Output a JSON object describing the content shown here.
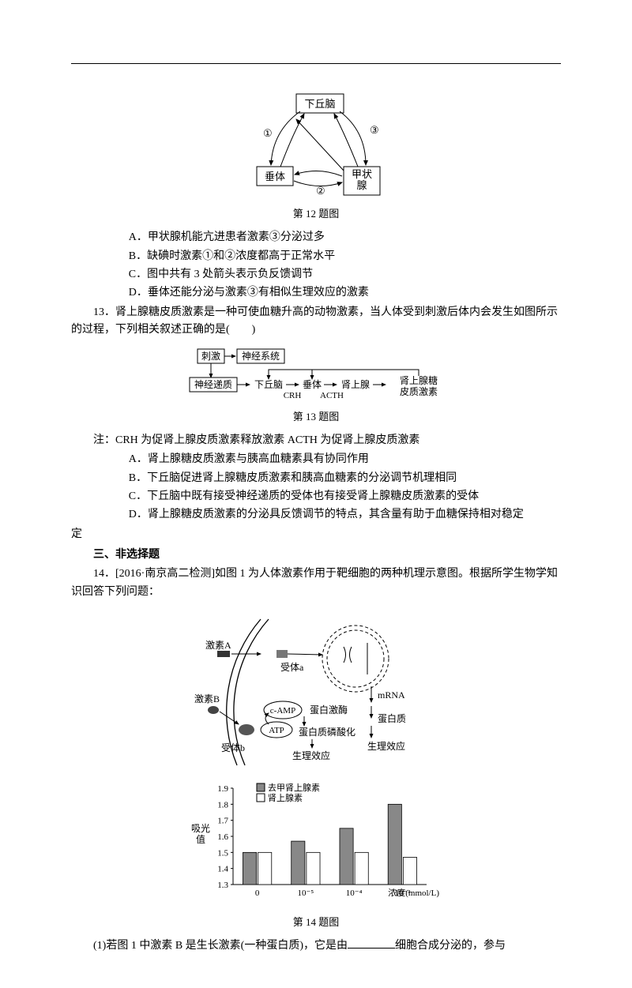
{
  "fig12": {
    "caption": "第 12 题图",
    "top_box": "下丘脑",
    "left_box": "垂体",
    "right_box": "甲状腺",
    "label1": "①",
    "label2": "②",
    "label3": "③",
    "box_stroke": "#000000",
    "box_fill": "#ffffff",
    "arrow_stroke": "#000000"
  },
  "q12": {
    "a": "A．甲状腺机能亢进患者激素③分泌过多",
    "b": "B．缺碘时激素①和②浓度都高于正常水平",
    "c": "C．图中共有 3 处箭头表示负反馈调节",
    "d": "D．垂体还能分泌与激素③有相似生理效应的激素"
  },
  "q13": {
    "stem1": "13．肾上腺糖皮质激素是一种可使血糖升高的动物激素，当人体受到刺激后体内会发生如图所示的过程，下列相关叙述正确的是(　　)",
    "note": "注：CRH 为促肾上腺皮质激素释放激素 ACTH 为促肾上腺皮质激素",
    "a": "A．肾上腺糖皮质激素与胰高血糖素具有协同作用",
    "b": "B．下丘脑促进肾上腺糖皮质激素和胰高血糖素的分泌调节机理相同",
    "c": "C．下丘脑中既有接受神经递质的受体也有接受肾上腺糖皮质激素的受体",
    "d": "D．肾上腺糖皮质激素的分泌具反馈调节的特点，其含量有助于血糖保持相对稳定"
  },
  "fig13": {
    "caption": "第 13 题图",
    "stim": "刺激",
    "nerve_sys": "神经系统",
    "nerve_trans": "神经递质",
    "hypo": "下丘脑",
    "pit": "垂体",
    "adrenal": "肾上腺",
    "gluco": "肾上腺糖皮质激素",
    "crh": "CRH",
    "acth": "ACTH",
    "box_stroke": "#000000"
  },
  "section3": "三、非选择题",
  "q14": {
    "stem1": "14．[2016·南京高二检测]如图 1 为人体激素作用于靶细胞的两种机理示意图。根据所学生物学知识回答下列问题：",
    "sub1_pre": "(1)若图 1 中激素 B 是生长激素(一种蛋白质)，它是由",
    "sub1_post": "细胞合成分泌的，参与"
  },
  "fig14": {
    "caption": "第 14 题图",
    "hormoneA": "激素A",
    "hormoneB": "激素B",
    "receptor_a": "受体a",
    "receptor_b": "受体b",
    "mrna": "mRNA",
    "protein": "蛋白质",
    "camp": "c-AMP",
    "atp": "ATP",
    "kinase": "蛋白激酶",
    "phos": "蛋白质磷酸化",
    "effect": "生理效应",
    "chart": {
      "ylabel": "吸光值",
      "xlabel": "浓度(mmol/L)",
      "legend1": "去甲肾上腺素",
      "legend2": "肾上腺素",
      "yticks": [
        "1.3",
        "1.4",
        "1.5",
        "1.6",
        "1.7",
        "1.8",
        "1.9"
      ],
      "xticks": [
        "0",
        "10⁻⁵",
        "10⁻⁴",
        "10⁻³"
      ],
      "series1": [
        1.5,
        1.57,
        1.65,
        1.8
      ],
      "series2": [
        1.5,
        1.5,
        1.5,
        1.47
      ],
      "color1": "#888888",
      "color2": "#ffffff",
      "axis_color": "#000000",
      "ymin": 1.3,
      "ymax": 1.9
    }
  }
}
